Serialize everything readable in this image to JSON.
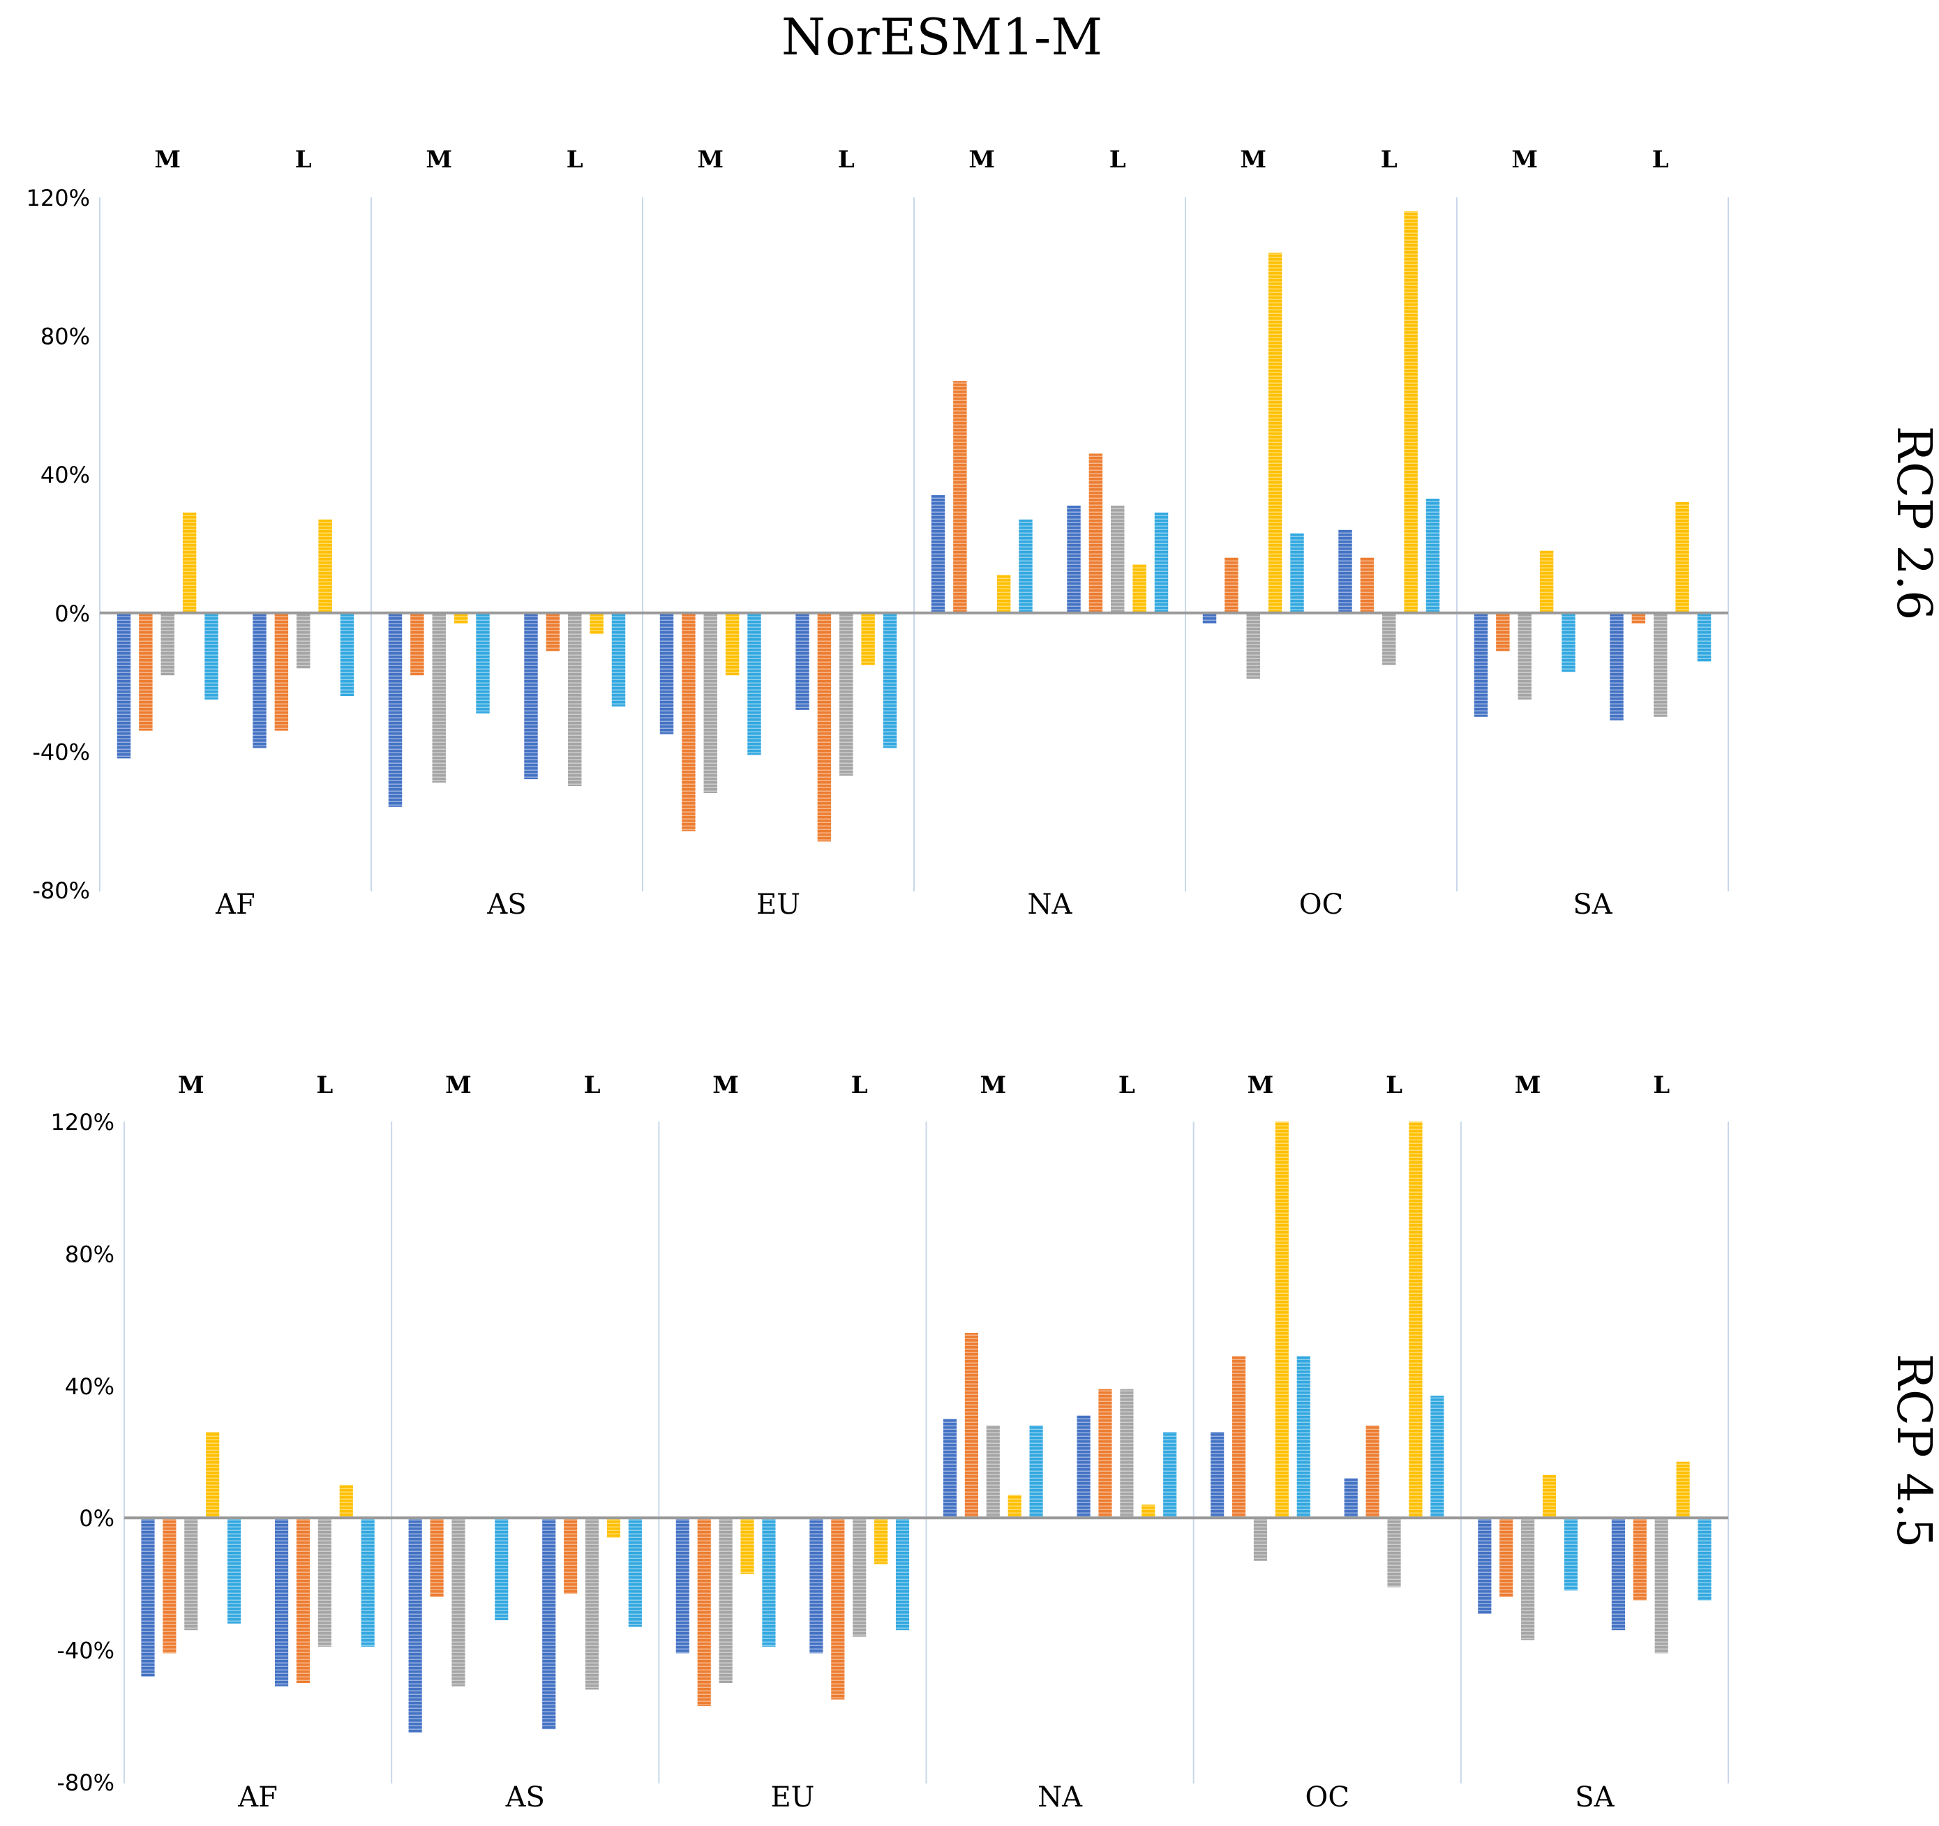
{
  "title": "NorESM1-M",
  "colors": {
    "s1": "#4472C4",
    "s2": "#ED7D31",
    "s3": "#A5A5A5",
    "s4": "#FFC000",
    "s5": "#33A8E0",
    "gridline": "#C9D7EA",
    "axis": "#9A9A9A",
    "text": "#000000"
  },
  "chart_data": [
    {
      "type": "bar",
      "scenario_label": "RCP 2.6",
      "categories": [
        "AF",
        "AS",
        "EU",
        "NA",
        "OC",
        "SA"
      ],
      "subgroups": [
        "M",
        "L"
      ],
      "ylim": [
        -80,
        120
      ],
      "yticks": [
        -80,
        -40,
        0,
        40,
        80,
        120
      ],
      "ytick_labels": [
        "-80%",
        "-40%",
        "0%",
        "40%",
        "80%",
        "120%"
      ],
      "series_count": 5,
      "values": [
        [
          [
            -42,
            -34,
            -18,
            29,
            -25
          ],
          [
            -39,
            -34,
            -16,
            27,
            -24
          ]
        ],
        [
          [
            -56,
            -18,
            -49,
            -3,
            -29
          ],
          [
            -48,
            -11,
            -50,
            -6,
            -27
          ]
        ],
        [
          [
            -35,
            -63,
            -52,
            -18,
            -41
          ],
          [
            -28,
            -66,
            -47,
            -15,
            -39
          ]
        ],
        [
          [
            34,
            67,
            0,
            11,
            27
          ],
          [
            31,
            46,
            31,
            14,
            29
          ]
        ],
        [
          [
            -3,
            16,
            -19,
            104,
            23
          ],
          [
            24,
            16,
            -15,
            116,
            33
          ]
        ],
        [
          [
            -30,
            -11,
            -25,
            18,
            -17
          ],
          [
            -31,
            -3,
            -30,
            32,
            -14
          ]
        ]
      ]
    },
    {
      "type": "bar",
      "scenario_label": "RCP 4.5",
      "categories": [
        "AF",
        "AS",
        "EU",
        "NA",
        "OC",
        "SA"
      ],
      "subgroups": [
        "M",
        "L"
      ],
      "ylim": [
        -80,
        120
      ],
      "yticks": [
        -80,
        -40,
        0,
        40,
        80,
        120
      ],
      "ytick_labels": [
        "-80%",
        "-40%",
        "0%",
        "40%",
        "80%",
        "120%"
      ],
      "series_count": 5,
      "values": [
        [
          [
            -48,
            -41,
            -34,
            26,
            -32
          ],
          [
            -51,
            -50,
            -39,
            10,
            -39
          ]
        ],
        [
          [
            -65,
            -24,
            -51,
            0,
            -31
          ],
          [
            -64,
            -23,
            -52,
            -6,
            -33
          ]
        ],
        [
          [
            -41,
            -57,
            -50,
            -17,
            -39
          ],
          [
            -41,
            -55,
            -36,
            -14,
            -34
          ]
        ],
        [
          [
            30,
            56,
            28,
            7,
            28
          ],
          [
            31,
            39,
            39,
            4,
            26
          ]
        ],
        [
          [
            26,
            49,
            -13,
            120,
            49
          ],
          [
            12,
            28,
            -21,
            120,
            37
          ]
        ],
        [
          [
            -29,
            -24,
            -37,
            13,
            -22
          ],
          [
            -34,
            -25,
            -41,
            17,
            -25
          ]
        ]
      ]
    }
  ]
}
